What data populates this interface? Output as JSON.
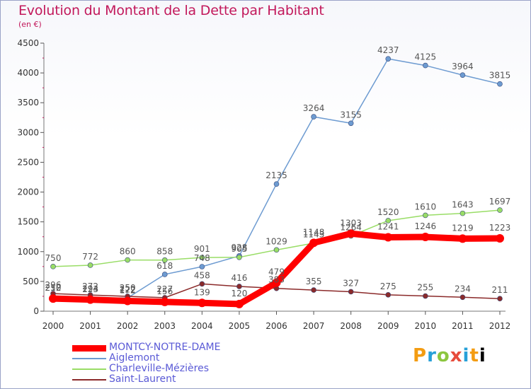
{
  "header": {
    "title": "Evolution du Montant de la Dette par Habitant",
    "unit": "(en €)"
  },
  "logo": {
    "text": "Proxiti"
  },
  "chart_data": {
    "type": "line",
    "title": "Evolution du Montant de la Dette par Habitant",
    "ylabel": "(en €)",
    "xlabel": "",
    "x": [
      2000,
      2001,
      2002,
      2003,
      2004,
      2005,
      2006,
      2007,
      2008,
      2009,
      2010,
      2011,
      2012
    ],
    "x_tick_labels": [
      "2000",
      "2001",
      "2002",
      "2003",
      "2004",
      "2005",
      "2006",
      "2007",
      "2008",
      "2009",
      "2010",
      "2011",
      "2012"
    ],
    "ylim": [
      0,
      4500
    ],
    "y_ticks": [
      0,
      500,
      1000,
      1500,
      2000,
      2500,
      3000,
      3500,
      4000,
      4500
    ],
    "y_tick_labels": [
      "0",
      "500",
      "1000",
      "1500",
      "2000",
      "2500",
      "3000",
      "3500",
      "4000",
      "4500"
    ],
    "grid": false,
    "legend_placement": "bottom-left",
    "series": [
      {
        "name": "MONTCY-NOTRE-DAME",
        "color": "#ff0000",
        "values": [
          212,
          194,
          172,
          156,
          139,
          120,
          479,
          1148,
          1303,
          1241,
          1246,
          1219,
          1223
        ],
        "labels": [
          "212",
          "194",
          "172",
          "156",
          "139",
          "120",
          "479",
          "1148",
          "1303",
          "1241",
          "1246",
          "1219",
          "1223"
        ]
      },
      {
        "name": "Aiglemont",
        "color": "#6d9bd1",
        "values": [
          250,
          223,
          222,
          618,
          748,
          928,
          2135,
          3264,
          3155,
          4237,
          4125,
          3964,
          3815
        ],
        "labels": [
          "250",
          "223",
          "222",
          "618",
          "748",
          "928",
          "2135",
          "3264",
          "3155",
          "4237",
          "4125",
          "3964",
          "3815"
        ]
      },
      {
        "name": "Charleville-Mézières",
        "color": "#99dd66",
        "values": [
          750,
          772,
          860,
          858,
          901,
          905,
          1029,
          1143,
          1264,
          1520,
          1610,
          1643,
          1697
        ],
        "labels": [
          "750",
          "772",
          "860",
          "858",
          "901",
          "905",
          "1029",
          "1143",
          "1264",
          "1520",
          "1610",
          "1643",
          "1697"
        ]
      },
      {
        "name": "Saint-Laurent",
        "color": "#8b2a2a",
        "values": [
          296,
          272,
          250,
          227,
          458,
          416,
          383,
          355,
          327,
          275,
          255,
          234,
          211
        ],
        "labels": [
          "296",
          "272",
          "250",
          "227",
          "458",
          "416",
          "383",
          "355",
          "327",
          "275",
          "255",
          "234",
          "211"
        ]
      }
    ]
  }
}
